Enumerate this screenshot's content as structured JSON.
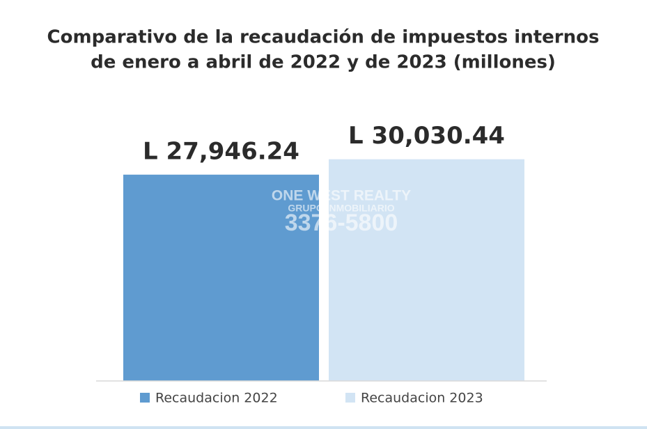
{
  "chart_data": {
    "type": "bar",
    "title": [
      "Comparativo de la recaudación de impuestos internos",
      "de enero a abril de 2022 y de 2023 (millones)"
    ],
    "categories": [
      null
    ],
    "series": [
      {
        "name": "Recaudacion 2022",
        "color": "#5f9bd0",
        "values": [
          27946.24
        ],
        "value_labels": [
          "L 27,946.24"
        ]
      },
      {
        "name": "Recaudacion 2023",
        "color": "#d2e4f4",
        "values": [
          30030.44
        ],
        "value_labels": [
          "L 30,030.44"
        ]
      }
    ],
    "ylim": [
      0,
      35000
    ],
    "legend": "bottom",
    "watermark": [
      "ONE WEST REALTY",
      "GRUPO INMOBILIARIO",
      "3376-5800"
    ]
  }
}
